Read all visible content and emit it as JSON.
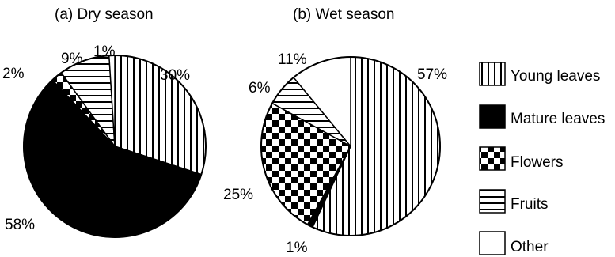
{
  "chart_data": [
    {
      "type": "pie",
      "title": "(a) Dry season",
      "slices": [
        {
          "category": "Young leaves",
          "value": 30,
          "label": "30%"
        },
        {
          "category": "Mature leaves",
          "value": 58,
          "label": "58%"
        },
        {
          "category": "Flowers",
          "value": 2,
          "label": "2%"
        },
        {
          "category": "Fruits",
          "value": 9,
          "label": "9%"
        },
        {
          "category": "Other",
          "value": 1,
          "label": "1%"
        }
      ]
    },
    {
      "type": "pie",
      "title": "(b) Wet season",
      "slices": [
        {
          "category": "Young leaves",
          "value": 57,
          "label": "57%"
        },
        {
          "category": "Mature leaves",
          "value": 1,
          "label": "1%"
        },
        {
          "category": "Flowers",
          "value": 25,
          "label": "25%"
        },
        {
          "category": "Fruits",
          "value": 6,
          "label": "6%"
        },
        {
          "category": "Other",
          "value": 11,
          "label": "11%"
        }
      ]
    }
  ],
  "legend": [
    {
      "label": "Young leaves",
      "pattern": "vertical-stripes"
    },
    {
      "label": "Mature leaves",
      "pattern": "solid-black"
    },
    {
      "label": "Flowers",
      "pattern": "checkerboard"
    },
    {
      "label": "Fruits",
      "pattern": "horizontal-stripes"
    },
    {
      "label": "Other",
      "pattern": "white"
    }
  ]
}
